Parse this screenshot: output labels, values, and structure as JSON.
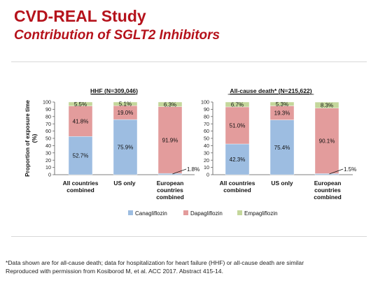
{
  "slide": {
    "title": "CVD-REAL Study",
    "subtitle": "Contribution of SGLT2 Inhibitors",
    "footnote": "*Data shown are for all-cause death; data for hospitalization for heart failure (HHF) or all-cause death are similar",
    "source": "Reproduced with permission from Kosiborod M, et al.  ACC 2017. Abstract 415-14."
  },
  "colors": {
    "Canagliflozin": "#9dbde1",
    "Dapagliflozin": "#e39c9c",
    "Empagliflozin": "#c4d79b"
  },
  "chart_data": [
    {
      "type": "bar",
      "stacked": true,
      "title": "HHF (N=309,046)",
      "ylabel": "Proportion of exposure time (%)",
      "ylim": [
        0,
        100
      ],
      "yticks": [
        0,
        10,
        20,
        30,
        40,
        50,
        60,
        70,
        80,
        90,
        100
      ],
      "categories": [
        "All countries combined",
        "US only",
        "European countries combined"
      ],
      "series": [
        {
          "name": "Canagliflozin",
          "values": [
            52.7,
            75.9,
            1.8
          ],
          "labels": [
            "52.7%",
            "75.9%",
            "1.8%"
          ]
        },
        {
          "name": "Dapagliflozin",
          "values": [
            41.8,
            19.0,
            91.9
          ],
          "labels": [
            "41.8%",
            "19.0%",
            "91.9%"
          ]
        },
        {
          "name": "Empagliflozin",
          "values": [
            5.5,
            5.1,
            6.3
          ],
          "labels": [
            "5.5%",
            "5.1%",
            "6.3%"
          ]
        }
      ]
    },
    {
      "type": "bar",
      "stacked": true,
      "title": "All-cause death* (N=215,622)",
      "ylim": [
        0,
        100
      ],
      "yticks": [
        0,
        10,
        20,
        30,
        40,
        50,
        60,
        70,
        80,
        90,
        100
      ],
      "categories": [
        "All countries combined",
        "US only",
        "European countries combined"
      ],
      "series": [
        {
          "name": "Canagliflozin",
          "values": [
            42.3,
            75.4,
            1.5
          ],
          "labels": [
            "42.3%",
            "75.4%",
            "1.5%"
          ]
        },
        {
          "name": "Dapagliflozin",
          "values": [
            51.0,
            19.3,
            90.1
          ],
          "labels": [
            "51.0%",
            "19.3%",
            "90.1%"
          ]
        },
        {
          "name": "Empagliflozin",
          "values": [
            6.7,
            5.3,
            8.3
          ],
          "labels": [
            "6.7%",
            "5.3%",
            "8.3%"
          ]
        }
      ]
    }
  ],
  "legend": [
    "Canagliflozin",
    "Dapagliflozin",
    "Empagliflozin"
  ]
}
